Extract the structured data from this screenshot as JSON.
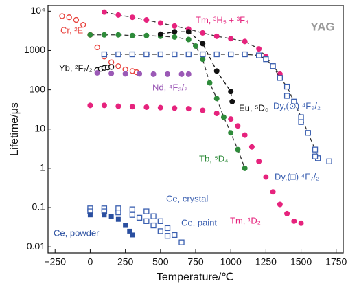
{
  "chart_data": {
    "type": "scatter",
    "yscale": "log",
    "annotation": "YAG",
    "xlabel": "Temperature/℃",
    "ylabel": "Lifetime/μs",
    "xlim": [
      -300,
      1800
    ],
    "xticks": [
      {
        "value": -250,
        "label": "−250"
      },
      0,
      250,
      500,
      750,
      1000,
      1250,
      1500,
      1750
    ],
    "ylim": [
      0.007,
      14000
    ],
    "yticks": [
      0.01,
      0.1,
      1,
      10,
      100,
      1000,
      {
        "value": 10000,
        "label": "10⁴"
      }
    ],
    "series": [
      {
        "name": "Cr, ²E",
        "color": "#e8413c",
        "marker": "open-circle",
        "x": [
          -200,
          -150,
          -100,
          -50,
          0,
          50,
          100,
          150,
          200,
          250,
          300,
          330
        ],
        "values": [
          7500,
          7000,
          6000,
          4500,
          2500,
          1200,
          700,
          500,
          400,
          330,
          300,
          280
        ]
      },
      {
        "name": "Yb, ²F₇/₂",
        "color": "#111111",
        "marker": "open-circle",
        "x": [
          50,
          75,
          100,
          125,
          150
        ],
        "values": [
          320,
          340,
          360,
          370,
          380
        ]
      },
      {
        "name": "Tm, ³H₅ + ³F₄",
        "color": "#e6237d",
        "marker": "filled-circle",
        "line": "dashed",
        "x": [
          100,
          200,
          300,
          400,
          500,
          600,
          700,
          800,
          900,
          1000,
          1100,
          1200,
          1250,
          1300,
          1350
        ],
        "values": [
          9500,
          8000,
          7000,
          6000,
          5000,
          4200,
          3500,
          2800,
          2300,
          2000,
          1700,
          1100,
          700,
          400,
          250
        ]
      },
      {
        "name": "Tb, ⁵D₄",
        "color": "#2e8b3a",
        "marker": "filled-circle",
        "line": "dashed",
        "x": [
          0,
          100,
          200,
          300,
          400,
          500,
          600,
          700,
          750,
          800,
          850,
          900,
          950,
          1000,
          1050,
          1100
        ],
        "values": [
          2500,
          2500,
          2500,
          2400,
          2400,
          2300,
          2200,
          1900,
          1300,
          600,
          150,
          60,
          20,
          8,
          3,
          1
        ]
      },
      {
        "name": "Eu, ⁵D₀",
        "color": "#111111",
        "marker": "filled-circle",
        "line": "dashed",
        "x": [
          500,
          600,
          700,
          800,
          900,
          1000,
          1010
        ],
        "values": [
          2600,
          3000,
          3000,
          1500,
          300,
          90,
          50
        ]
      },
      {
        "name": "Dy,(⊙) ⁴F₉/₂",
        "color": "#3a5fb0",
        "marker": "open-square",
        "line": "dashed",
        "x": [
          100,
          200,
          300,
          400,
          500,
          600,
          700,
          800,
          900,
          1000,
          1100,
          1200,
          1250,
          1300,
          1350,
          1400,
          1450,
          1500,
          1550,
          1600,
          1620
        ],
        "values": [
          800,
          800,
          800,
          800,
          800,
          800,
          800,
          800,
          800,
          800,
          800,
          750,
          600,
          400,
          200,
          120,
          50,
          20,
          8,
          3,
          1.8
        ]
      },
      {
        "name": "Dy,(□) ⁴F₇/₂",
        "color": "#3a5fb0",
        "marker": "open-square",
        "x": [
          1400,
          1500,
          1600,
          1700
        ],
        "values": [
          70,
          15,
          2,
          1.5
        ]
      },
      {
        "name": "Nd, ⁴F₃/₂",
        "color": "#9b59b6",
        "marker": "filled-circle",
        "x": [
          50,
          150,
          250,
          350,
          450,
          550,
          650,
          700
        ],
        "values": [
          270,
          260,
          255,
          255,
          250,
          250,
          250,
          250
        ]
      },
      {
        "name": "Tm, ¹D₂",
        "color": "#e6237d",
        "marker": "filled-circle",
        "x": [
          0,
          100,
          200,
          300,
          400,
          500,
          600,
          700,
          800,
          900,
          1000,
          1050,
          1100,
          1150,
          1200,
          1250,
          1300,
          1350,
          1400,
          1450,
          1500
        ],
        "values": [
          40,
          40,
          38,
          37,
          36,
          35,
          34,
          33,
          30,
          25,
          18,
          12,
          7,
          3.5,
          1.5,
          0.6,
          0.25,
          0.12,
          0.07,
          0.045,
          0.04
        ]
      },
      {
        "name": "Ce, crystal",
        "color": "#3a5fb0",
        "marker": "open-square",
        "x": [
          0,
          100,
          200,
          300,
          400,
          450,
          500,
          550,
          600,
          650
        ],
        "values": [
          0.095,
          0.095,
          0.095,
          0.09,
          0.08,
          0.06,
          0.045,
          0.03,
          0.02,
          0.013
        ]
      },
      {
        "name": "Ce, paint",
        "color": "#3a5fb0",
        "marker": "crossed-square",
        "x": [
          0,
          100,
          200,
          300,
          350,
          400,
          450,
          500,
          550
        ],
        "values": [
          0.08,
          0.08,
          0.075,
          0.065,
          0.055,
          0.045,
          0.035,
          0.025,
          0.019
        ]
      },
      {
        "name": "Ce, powder",
        "color": "#2a4fa0",
        "marker": "filled-square",
        "x": [
          0,
          100,
          150,
          200,
          250,
          280,
          300
        ],
        "values": [
          0.065,
          0.065,
          0.06,
          0.05,
          0.035,
          0.025,
          0.02
        ]
      }
    ]
  }
}
